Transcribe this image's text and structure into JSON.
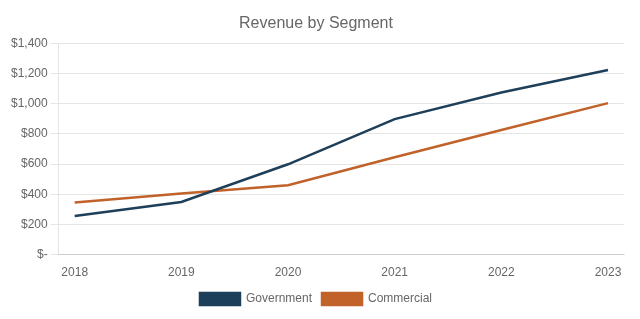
{
  "chart_data": {
    "type": "line",
    "title": "Revenue by Segment",
    "x": [
      2018,
      2019,
      2020,
      2021,
      2022,
      2023
    ],
    "series": [
      {
        "name": "Government",
        "color": "#1e3f5a",
        "values": [
          256,
          348,
          598,
          897,
          1074,
          1222
        ]
      },
      {
        "name": "Commercial",
        "color": "#c0622a",
        "values": [
          345,
          405,
          460,
          645,
          825,
          1003
        ]
      }
    ],
    "xlim": [
      2017.85,
      2023.15
    ],
    "xticks": [
      2018,
      2019,
      2020,
      2021,
      2022,
      2023
    ],
    "ylim": [
      0,
      1400
    ],
    "yticks": [
      {
        "value": 0,
        "label": "$-"
      },
      {
        "value": 200,
        "label": "$200"
      },
      {
        "value": 400,
        "label": "$400"
      },
      {
        "value": 600,
        "label": "$600"
      },
      {
        "value": 800,
        "label": "$800"
      },
      {
        "value": 1000,
        "label": "$1,000"
      },
      {
        "value": 1200,
        "label": "$1,200"
      },
      {
        "value": 1400,
        "label": "$1,400"
      }
    ],
    "grid": "y",
    "legend": "bottom"
  }
}
